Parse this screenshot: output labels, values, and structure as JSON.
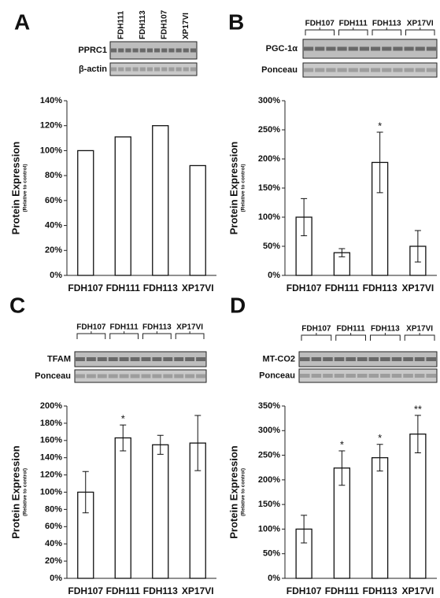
{
  "chart_data": [
    {
      "type": "bar",
      "panel": "A",
      "lanes": [
        "FDH111",
        "FDH113",
        "FDH107",
        "XP17VI"
      ],
      "blot_rows": [
        "PPRC1",
        "β-actin"
      ],
      "ylabel": "Protein Expression",
      "ylabel_sub": "(Relative to control)",
      "categories": [
        "FDH107",
        "FDH111",
        "FDH113",
        "XP17VI"
      ],
      "values": [
        100,
        111,
        120,
        88
      ],
      "ylim": [
        0,
        140
      ],
      "yticks": [
        {
          "value": 0,
          "label": "0%"
        },
        {
          "value": 20,
          "label": "20%"
        },
        {
          "value": 40,
          "label": "40%"
        },
        {
          "value": 60,
          "label": "60%"
        },
        {
          "value": 80,
          "label": "80%"
        },
        {
          "value": 100,
          "label": "100%"
        },
        {
          "value": 120,
          "label": "120%"
        },
        {
          "value": 140,
          "label": "140%"
        }
      ],
      "color": "#ffffff"
    },
    {
      "type": "bar",
      "panel": "B",
      "lanes": [
        "FDH107",
        "FDH111",
        "FDH113",
        "XP17VI"
      ],
      "blot_rows": [
        "PGC-1α",
        "Ponceau"
      ],
      "ylabel": "Protein Expression",
      "ylabel_sub": "(Relative to control)",
      "categories": [
        "FDH107",
        "FDH111",
        "FDH113",
        "XP17VI"
      ],
      "values": [
        100,
        39,
        194,
        50
      ],
      "errors": [
        32,
        7,
        52,
        27
      ],
      "significance": [
        null,
        null,
        "*",
        null
      ],
      "ylim": [
        0,
        300
      ],
      "yticks": [
        {
          "value": 0,
          "label": "0%"
        },
        {
          "value": 50,
          "label": "50%"
        },
        {
          "value": 100,
          "label": "100%"
        },
        {
          "value": 150,
          "label": "150%"
        },
        {
          "value": 200,
          "label": "200%"
        },
        {
          "value": 250,
          "label": "250%"
        },
        {
          "value": 300,
          "label": "300%"
        }
      ],
      "color": "#ffffff"
    },
    {
      "type": "bar",
      "panel": "C",
      "lanes": [
        "FDH107",
        "FDH111",
        "FDH113",
        "XP17VI"
      ],
      "blot_rows": [
        "TFAM",
        "Ponceau"
      ],
      "ylabel": "Protein Expression",
      "ylabel_sub": "(Relative to control)",
      "categories": [
        "FDH107",
        "FDH111",
        "FDH113",
        "XP17VI"
      ],
      "values": [
        100,
        163,
        155,
        157
      ],
      "errors": [
        24,
        15,
        11,
        32
      ],
      "significance": [
        null,
        "*",
        null,
        null
      ],
      "ylim": [
        0,
        200
      ],
      "yticks": [
        {
          "value": 0,
          "label": "0%"
        },
        {
          "value": 20,
          "label": "20%"
        },
        {
          "value": 40,
          "label": "40%"
        },
        {
          "value": 60,
          "label": "60%"
        },
        {
          "value": 80,
          "label": "80%"
        },
        {
          "value": 100,
          "label": "100%"
        },
        {
          "value": 120,
          "label": "120%"
        },
        {
          "value": 140,
          "label": "140%"
        },
        {
          "value": 160,
          "label": "160%"
        },
        {
          "value": 180,
          "label": "180%"
        },
        {
          "value": 200,
          "label": "200%"
        }
      ],
      "color": "#ffffff"
    },
    {
      "type": "bar",
      "panel": "D",
      "lanes": [
        "FDH107",
        "FDH111",
        "FDH113",
        "XP17VI"
      ],
      "blot_rows": [
        "MT-CO2",
        "Ponceau"
      ],
      "ylabel": "Protein Expression",
      "ylabel_sub": "(Relative to control)",
      "categories": [
        "FDH107",
        "FDH111",
        "FDH113",
        "XP17VI"
      ],
      "values": [
        100,
        224,
        245,
        293
      ],
      "errors": [
        28,
        35,
        27,
        38
      ],
      "significance": [
        null,
        "*",
        "*",
        "**"
      ],
      "ylim": [
        0,
        350
      ],
      "yticks": [
        {
          "value": 0,
          "label": "0%"
        },
        {
          "value": 50,
          "label": "50%"
        },
        {
          "value": 100,
          "label": "100%"
        },
        {
          "value": 150,
          "label": "150%"
        },
        {
          "value": 200,
          "label": "200%"
        },
        {
          "value": 250,
          "label": "250%"
        },
        {
          "value": 300,
          "label": "300%"
        },
        {
          "value": 350,
          "label": "350%"
        }
      ],
      "color": "#ffffff"
    }
  ]
}
